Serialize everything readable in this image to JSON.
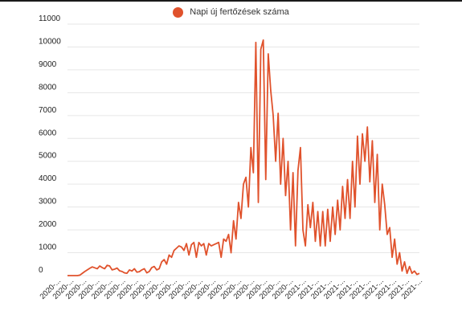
{
  "chart_data": {
    "type": "line",
    "legend": "Napi új fertőzések száma",
    "legend_position": "top",
    "color": "#e0522c",
    "grid": true,
    "ylim": [
      0,
      11000
    ],
    "yticks": [
      0,
      1000,
      2000,
      3000,
      4000,
      5000,
      6000,
      7000,
      8000,
      9000,
      10000,
      11000
    ],
    "xtick_labels": [
      "2020-...",
      "2020-...",
      "2020-...",
      "2020-...",
      "2020-...",
      "2020-...",
      "2020-...",
      "2020-...",
      "2020-...",
      "2020-...",
      "2020-...",
      "2020-...",
      "2020-...",
      "2020-...",
      "2020-...",
      "2020-...",
      "2020-...",
      "2020-...",
      "2020-...",
      "2021-...",
      "2021-...",
      "2021-...",
      "2021-...",
      "2021-...",
      "2021-...",
      "2021-...",
      "2021-...",
      "2021-...",
      "2021-..."
    ],
    "series": [
      {
        "name": "Napi új fertőzések száma",
        "values": [
          0,
          0,
          0,
          0,
          0,
          20,
          100,
          180,
          250,
          320,
          380,
          340,
          300,
          420,
          350,
          300,
          450,
          420,
          250,
          280,
          330,
          210,
          180,
          120,
          100,
          250,
          200,
          300,
          150,
          170,
          250,
          300,
          120,
          180,
          350,
          400,
          250,
          300,
          600,
          700,
          500,
          900,
          800,
          1100,
          1200,
          1300,
          1250,
          1100,
          1400,
          900,
          1350,
          1450,
          800,
          1450,
          1300,
          1400,
          900,
          1400,
          1300,
          1350,
          1400,
          1450,
          800,
          1600,
          1500,
          1800,
          1000,
          2400,
          1600,
          3200,
          2500,
          4000,
          4300,
          3000,
          5600,
          4500,
          10200,
          3200,
          9900,
          10300,
          4200,
          9700,
          8100,
          7000,
          5000,
          7100,
          4000,
          6000,
          3500,
          5000,
          2000,
          4500,
          1300,
          4600,
          5600,
          2000,
          1300,
          3100,
          2100,
          3200,
          1500,
          2800,
          1300,
          2800,
          1300,
          2900,
          1500,
          3000,
          1800,
          3300,
          2000,
          3900,
          2500,
          4200,
          2500,
          5000,
          3000,
          6100,
          4000,
          6200,
          5000,
          6500,
          4100,
          5900,
          3200,
          5300,
          2000,
          4000,
          3100,
          1800,
          2100,
          800,
          1600,
          500,
          1000,
          200,
          600,
          100,
          400,
          100,
          200,
          50,
          100
        ]
      }
    ]
  }
}
